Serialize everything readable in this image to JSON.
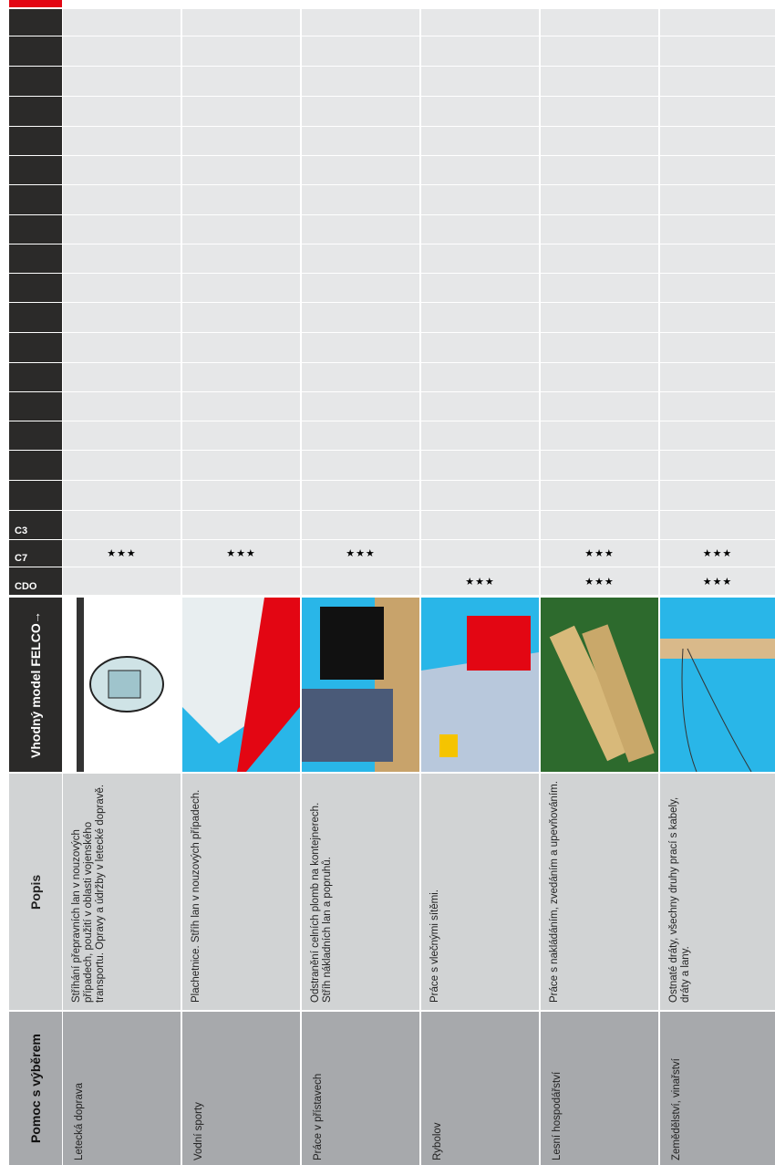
{
  "header": {
    "pomoc": "Pomoc s výběrem",
    "popis": "Popis",
    "model": "Vhodný model FELCO",
    "arrow": "→"
  },
  "models": [
    "C3",
    "C7",
    "CDO"
  ],
  "rows": [
    {
      "category": "Letecká doprava",
      "description": "Stříhání přepravních lan v nouzových případech, použití v oblasti vojenského transportu. Opravy a údržby v letecké dopravě.",
      "ratings": {
        "C7": "★★★"
      }
    },
    {
      "category": "Vodní sporty",
      "description": "Plachetnice. Stříh lan v nouzových případech.",
      "ratings": {
        "C7": "★★★"
      }
    },
    {
      "category": "Práce v přístavech",
      "description": "Odstranění celních plomb na kontejnerech. Stříh nákladních lan a popruhů.",
      "ratings": {
        "C7": "★★★"
      }
    },
    {
      "category": "Rybolov",
      "description": "Práce s vlečnými sítěmi.",
      "ratings": {
        "CDO": "★★★"
      }
    },
    {
      "category": "Lesní hospodářství",
      "description": "Práce s nakládáním, zvedáním a upevňováním.",
      "ratings": {
        "C7": "★★★",
        "CDO": "★★★"
      }
    },
    {
      "category": "Zemědělství, vinařství",
      "description": "Ostnaté dráty, všechny druhy prací s kabely, dráty a lany.",
      "ratings": {
        "C7": "★★★",
        "CDO": "★★★"
      }
    }
  ]
}
